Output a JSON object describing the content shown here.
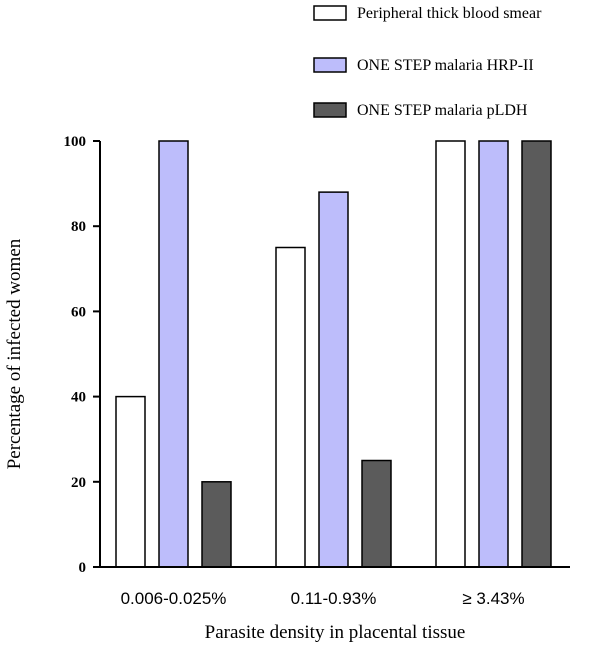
{
  "chart_data": {
    "type": "bar",
    "xlabel": "Parasite density in placental tissue",
    "ylabel": "Percentage of infected women",
    "ylim": [
      0,
      100
    ],
    "yticks": [
      "0",
      "20",
      "40",
      "60",
      "80",
      "100"
    ],
    "categories": [
      "0.006-0.025%",
      "0.11-0.93%",
      "≥ 3.43%"
    ],
    "series": [
      {
        "name": "Peripheral thick blood smear",
        "values": [
          40,
          75,
          100
        ],
        "color": "#ffffff"
      },
      {
        "name": "ONE STEP malaria HRP-II",
        "values": [
          100,
          88,
          100
        ],
        "color": "#bdbdfb"
      },
      {
        "name": "ONE STEP malaria pLDH",
        "values": [
          20,
          25,
          100
        ],
        "color": "#5b5b5b"
      }
    ],
    "grid": false,
    "legend_position": "top-right"
  }
}
